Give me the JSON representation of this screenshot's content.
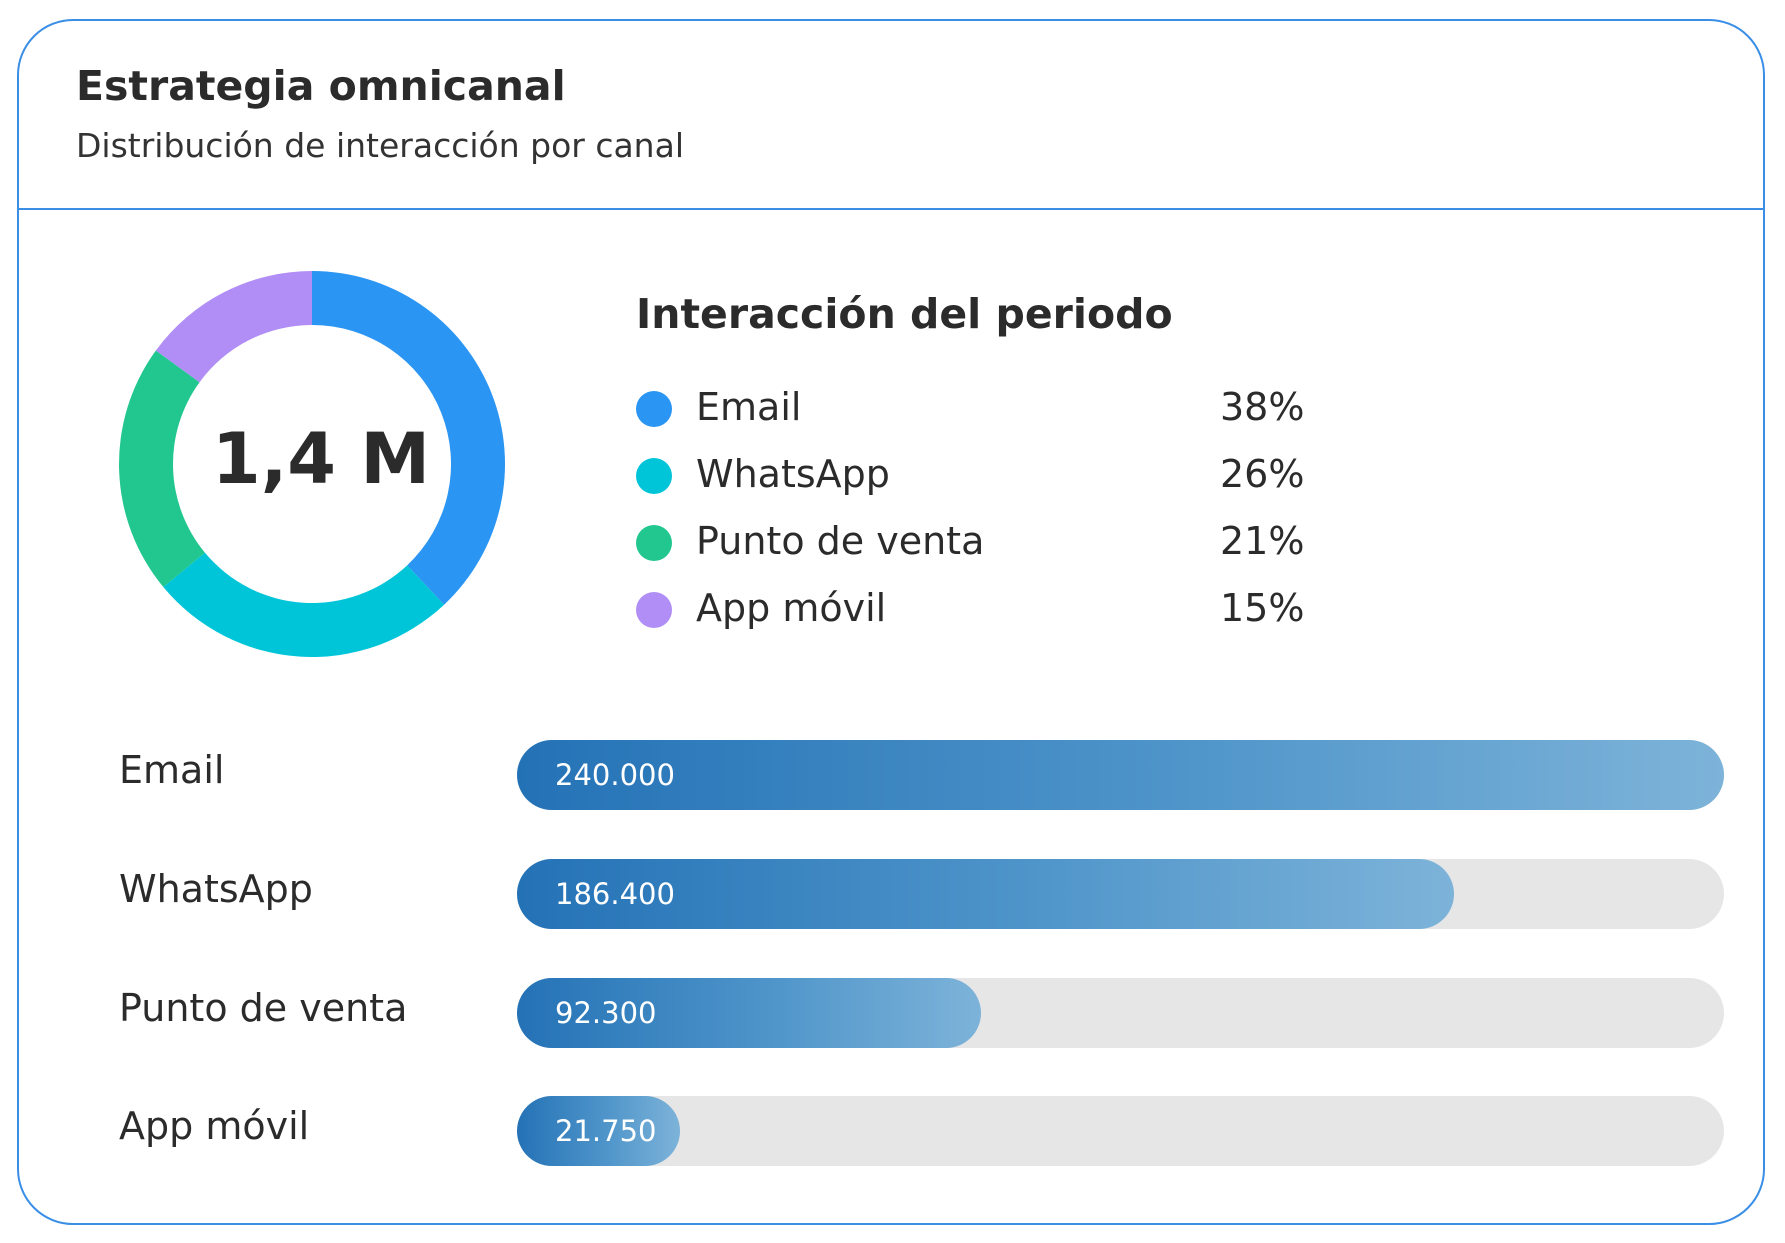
{
  "header": {
    "title": "Estrategia omnicanal",
    "subtitle": "Distribución de interacción por canal"
  },
  "donut": {
    "center_label": "1,4 M"
  },
  "legend": {
    "title": "Interacción del periodo",
    "items": [
      {
        "label": "Email",
        "pct_label": "38%",
        "color": "#2b95f3"
      },
      {
        "label": "WhatsApp",
        "pct_label": "26%",
        "color": "#00c5d8"
      },
      {
        "label": "Punto de venta",
        "pct_label": "21%",
        "color": "#22c78f"
      },
      {
        "label": "App móvil",
        "pct_label": "15%",
        "color": "#b08ef5"
      }
    ]
  },
  "bars": [
    {
      "label": "Email",
      "value_label": "240.000"
    },
    {
      "label": "WhatsApp",
      "value_label": "186.400"
    },
    {
      "label": "Punto de venta",
      "value_label": "92.300"
    },
    {
      "label": "App móvil",
      "value_label": "21.750"
    }
  ],
  "chart_data": [
    {
      "type": "pie",
      "style": "donut",
      "categories": [
        "Email",
        "WhatsApp",
        "Punto de venta",
        "App móvil"
      ],
      "values": [
        38,
        26,
        21,
        15
      ],
      "colors": [
        "#2b95f3",
        "#00c5d8",
        "#22c78f",
        "#b08ef5"
      ],
      "title": "Interacción del periodo",
      "center_label": "1,4 M"
    },
    {
      "type": "bar",
      "orientation": "horizontal",
      "categories": [
        "Email",
        "WhatsApp",
        "Punto de venta",
        "App móvil"
      ],
      "values": [
        240000,
        186400,
        92300,
        21750
      ],
      "xlim": [
        0,
        240000
      ],
      "grid": false
    }
  ]
}
